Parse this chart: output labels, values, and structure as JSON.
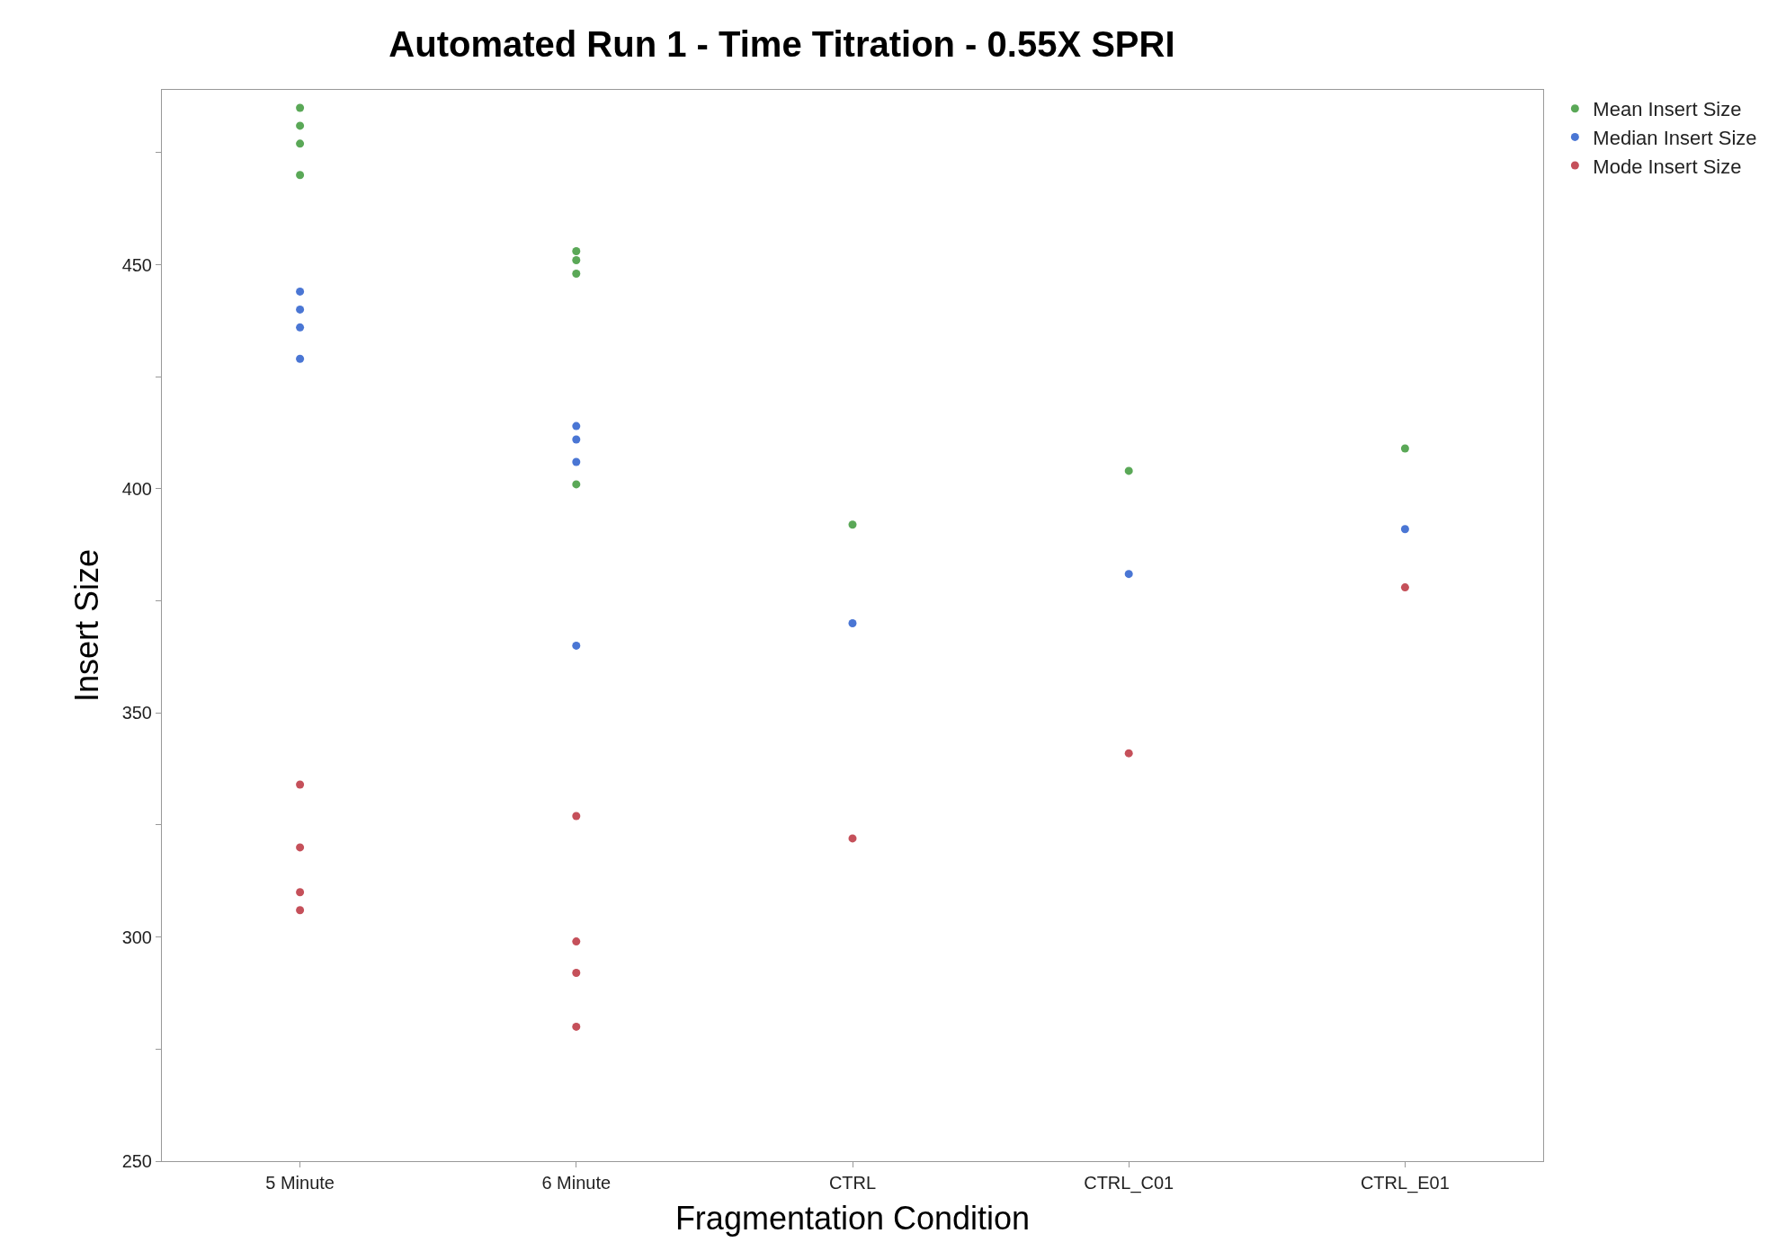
{
  "chart_data": {
    "type": "scatter",
    "title": "Automated Run 1 - Time Titration - 0.55X SPRI",
    "xlabel": "Fragmentation Condition",
    "ylabel": "Insert Size",
    "categories": [
      "5 Minute",
      "6 Minute",
      "CTRL",
      "CTRL_C01",
      "CTRL_E01"
    ],
    "ylim": [
      250,
      489
    ],
    "yticks": [
      250,
      {
        "value": 275,
        "label": null
      },
      300,
      {
        "value": 325,
        "label": null
      },
      350,
      {
        "value": 375,
        "label": null
      },
      400,
      {
        "value": 425,
        "label": null
      },
      450,
      {
        "value": 475,
        "label": null
      }
    ],
    "legend": "top right",
    "marker": "circle",
    "series": [
      {
        "name": "Mean Insert Size",
        "color": "#5aa857",
        "x": [
          "5 Minute",
          "5 Minute",
          "5 Minute",
          "5 Minute",
          "6 Minute",
          "6 Minute",
          "6 Minute",
          "6 Minute",
          "CTRL",
          "CTRL_C01",
          "CTRL_E01"
        ],
        "values": [
          485,
          481,
          477,
          470,
          453,
          451,
          448,
          401,
          392,
          404,
          409
        ]
      },
      {
        "name": "Median Insert Size",
        "color": "#4a76d4",
        "x": [
          "5 Minute",
          "5 Minute",
          "5 Minute",
          "5 Minute",
          "6 Minute",
          "6 Minute",
          "6 Minute",
          "6 Minute",
          "CTRL",
          "CTRL_C01",
          "CTRL_E01"
        ],
        "values": [
          444,
          440,
          436,
          429,
          414,
          411,
          406,
          365,
          370,
          381,
          391
        ]
      },
      {
        "name": "Mode Insert Size",
        "color": "#c5505a",
        "x": [
          "5 Minute",
          "5 Minute",
          "5 Minute",
          "5 Minute",
          "6 Minute",
          "6 Minute",
          "6 Minute",
          "6 Minute",
          "CTRL",
          "CTRL_C01",
          "CTRL_E01"
        ],
        "values": [
          334,
          320,
          310,
          306,
          327,
          299,
          292,
          280,
          322,
          341,
          378
        ]
      }
    ]
  }
}
